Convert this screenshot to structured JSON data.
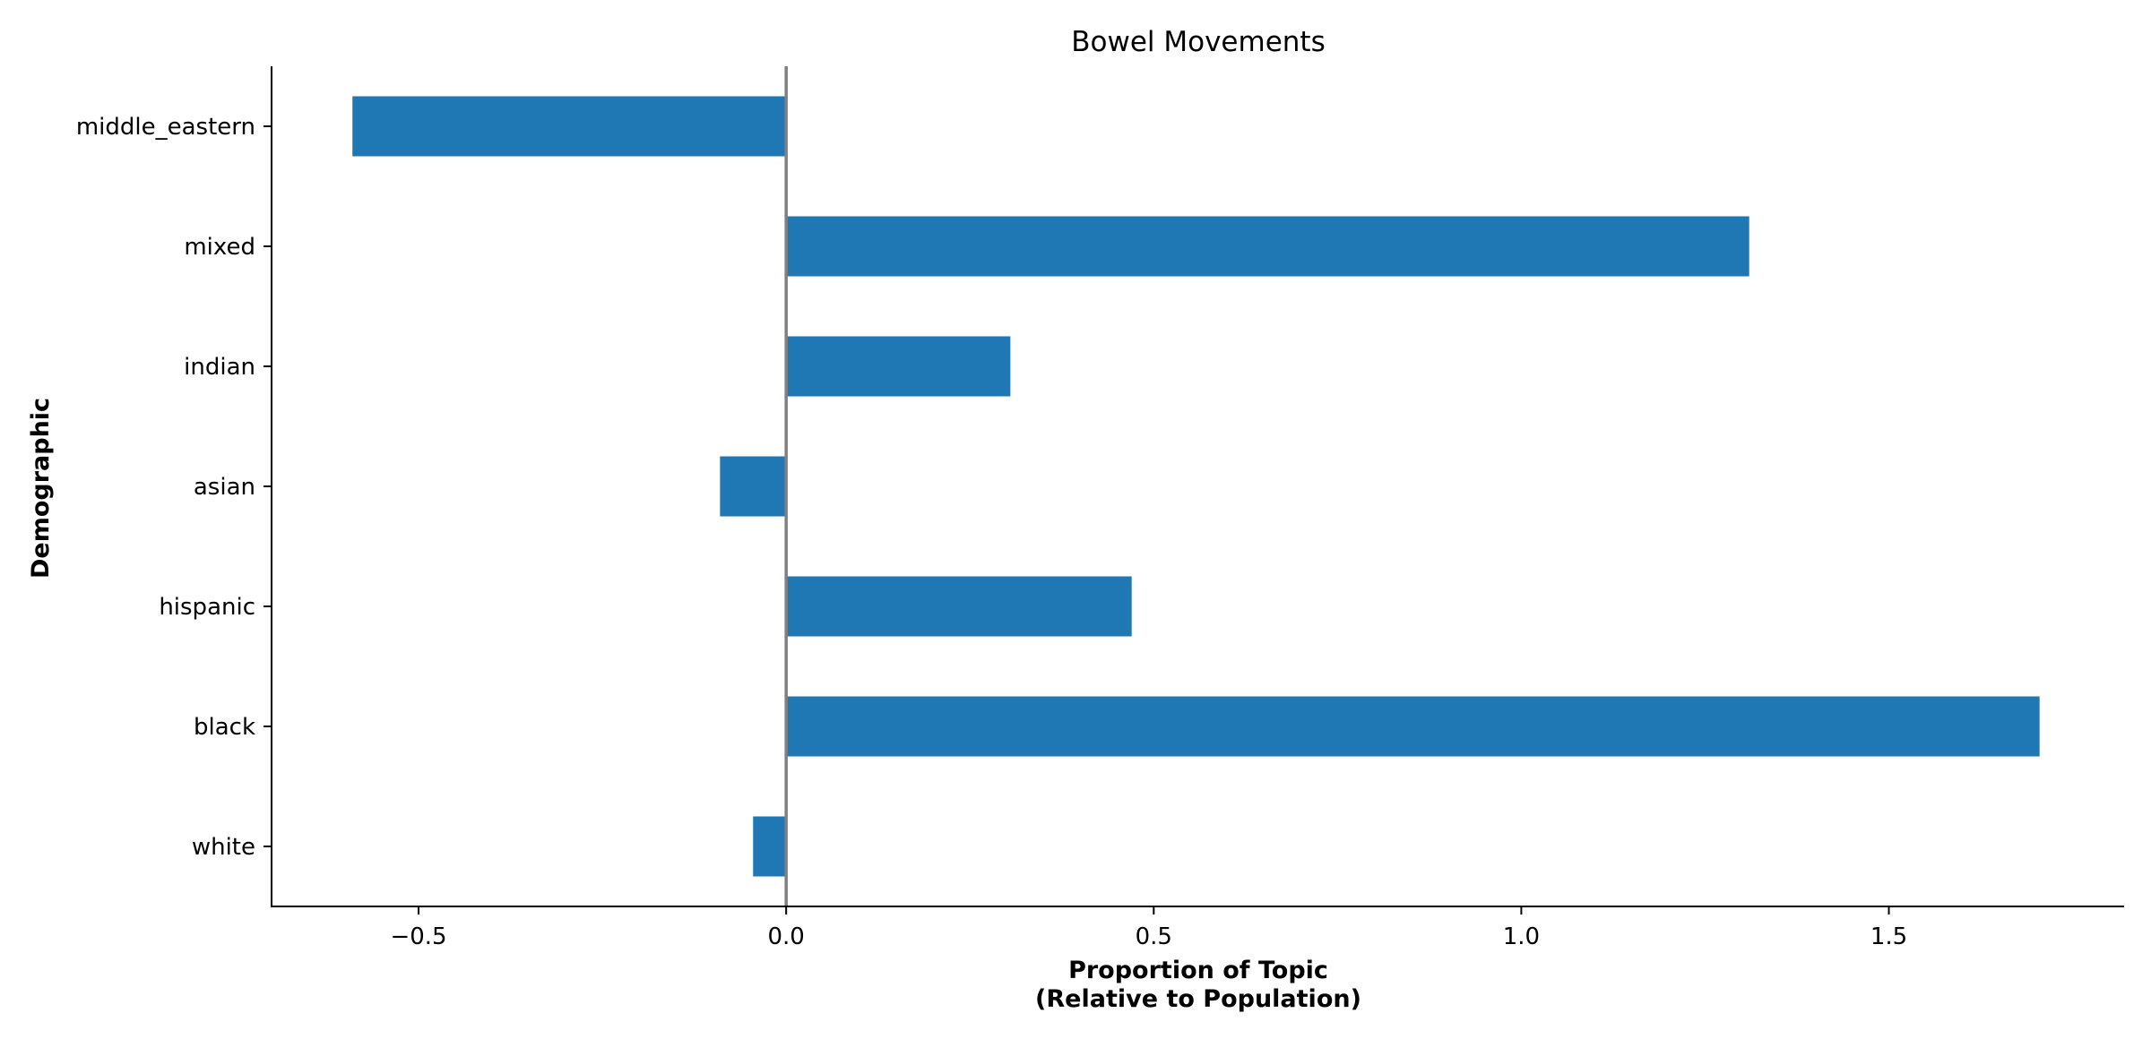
{
  "chart_data": {
    "type": "bar",
    "orientation": "horizontal",
    "title": "Bowel Movements",
    "xlabel_lines": [
      "Proportion of Topic",
      "(Relative to Population)"
    ],
    "ylabel": "Demographic",
    "categories": [
      "middle_eastern",
      "mixed",
      "indian",
      "asian",
      "hispanic",
      "black",
      "white"
    ],
    "values": [
      -0.59,
      1.31,
      0.305,
      -0.09,
      0.47,
      1.705,
      -0.045
    ],
    "xlim": [
      -0.7,
      1.82
    ],
    "xticks": [
      -0.5,
      0.0,
      0.5,
      1.0,
      1.5
    ],
    "xtick_labels": [
      "−0.5",
      "0.0",
      "0.5",
      "1.0",
      "1.5"
    ],
    "bar_color": "#1f77b4",
    "zero_line_color": "#808080",
    "grid": false,
    "legend": "none"
  }
}
